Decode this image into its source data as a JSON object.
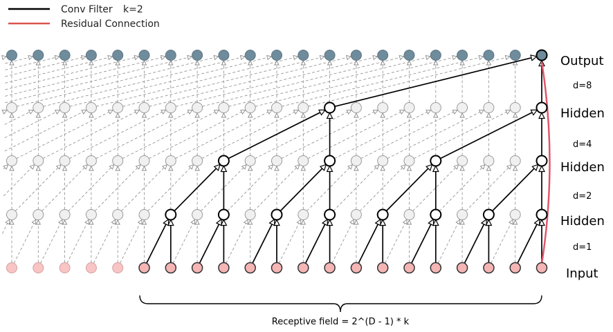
{
  "legend": {
    "conv_filter": "Conv Filter",
    "kernel": "k=2",
    "residual": "Residual Connection",
    "conv_color": "#000000",
    "residual_color": "#d9534f"
  },
  "layers": [
    {
      "name": "Output"
    },
    {
      "name": "Hidden"
    },
    {
      "name": "Hidden"
    },
    {
      "name": "Hidden"
    },
    {
      "name": "Input"
    }
  ],
  "dilations": [
    "d=8",
    "d=4",
    "d=2",
    "d=1"
  ],
  "receptive_field": "Receptive field = 2^(D - 1) * k",
  "nodes_per_layer": 21,
  "colors": {
    "output_fill": "#6f8c9c",
    "hidden_fill": "#f0f0f0",
    "hidden_active_fill": "#ffffff",
    "input_fill": "#f8c4c4",
    "input_active_fill": "#f5b5b5",
    "inactive_stroke": "#999999",
    "active_stroke": "#000000",
    "residual_stroke": "#e0566a"
  }
}
